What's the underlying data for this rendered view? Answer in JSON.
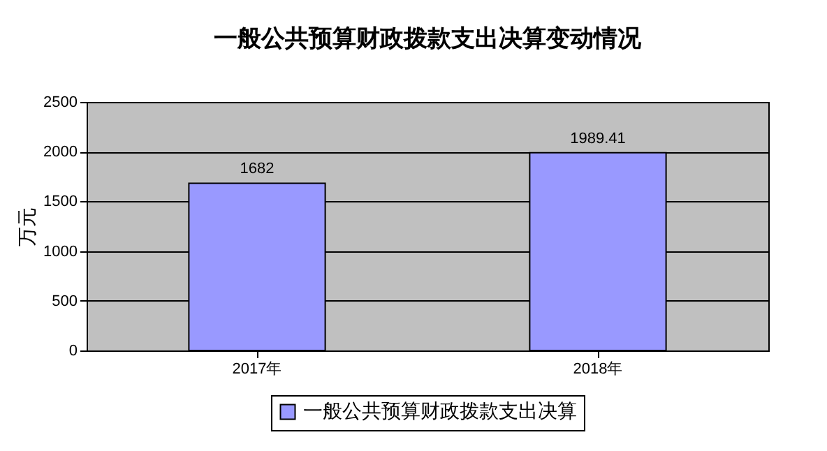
{
  "chart_data": {
    "type": "bar",
    "title": "一般公共预算财政拨款支出决算变动情况",
    "ylabel": "万元",
    "categories": [
      "2017年",
      "2018年"
    ],
    "series": [
      {
        "name": "一般公共预算财政拨款支出决算",
        "color": "#9999ff",
        "values": [
          1682,
          1989.41
        ]
      }
    ],
    "ylim": [
      0,
      2500
    ],
    "yticks": [
      0,
      500,
      1000,
      1500,
      2000,
      2500
    ],
    "grid": "y",
    "legend": "bottom",
    "data_labels": true
  }
}
